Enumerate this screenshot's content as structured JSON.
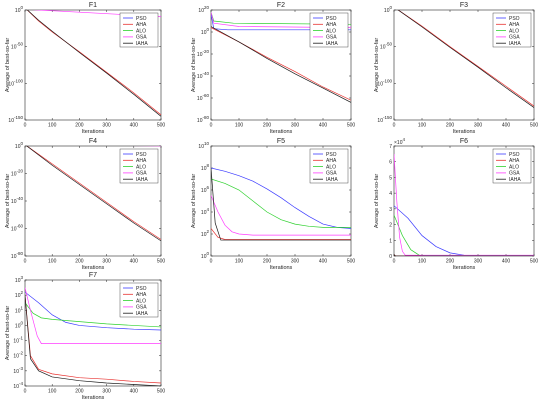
{
  "colors": {
    "PSO": "#3b3bff",
    "AHA": "#e8312f",
    "ALO": "#2fd12f",
    "GSA": "#ff3dff",
    "IAHA": "#1a1a1a"
  },
  "legend_names": [
    "PSO",
    "AHA",
    "ALO",
    "GSA",
    "IAHA"
  ],
  "chart_data": [
    {
      "id": "F1",
      "type": "line",
      "title": "F1",
      "xlabel": "Iterations",
      "ylabel": "Average of best-so-far",
      "xlim": [
        0,
        500
      ],
      "xticks": [
        0,
        100,
        200,
        300,
        400,
        500
      ],
      "yscale": "log",
      "ylim_exp": [
        -150,
        0
      ],
      "ytick_exps": [
        0,
        -50,
        -100,
        -150
      ],
      "legend_position": "top-right",
      "series": [
        {
          "name": "PSO",
          "x": [
            0,
            500
          ],
          "y_exp": [
            2,
            2
          ]
        },
        {
          "name": "AHA",
          "x": [
            0,
            50,
            100,
            200,
            300,
            400,
            500
          ],
          "y_exp": [
            3,
            -15,
            -30,
            -57,
            -85,
            -113,
            -143
          ]
        },
        {
          "name": "ALO",
          "x": [
            0,
            500
          ],
          "y_exp": [
            4,
            4
          ]
        },
        {
          "name": "GSA",
          "x": [
            0,
            500
          ],
          "y_exp": [
            1,
            -9
          ]
        },
        {
          "name": "IAHA",
          "x": [
            0,
            50,
            100,
            200,
            300,
            400,
            500
          ],
          "y_exp": [
            3,
            -14,
            -29,
            -58,
            -86,
            -115,
            -145
          ]
        }
      ]
    },
    {
      "id": "F2",
      "type": "line",
      "title": "F2",
      "xlabel": "Iterations",
      "ylabel": "Average of best-so-far",
      "xlim": [
        0,
        500
      ],
      "xticks": [
        0,
        100,
        200,
        300,
        400,
        500
      ],
      "yscale": "log",
      "ylim_exp": [
        -80,
        20
      ],
      "ytick_exps": [
        20,
        0,
        -20,
        -40,
        -60,
        -80
      ],
      "legend_position": "top-right",
      "series": [
        {
          "name": "PSO",
          "x": [
            0,
            10,
            60,
            500
          ],
          "y_exp": [
            16,
            3,
            2,
            2
          ]
        },
        {
          "name": "AHA",
          "x": [
            0,
            100,
            200,
            300,
            400,
            500
          ],
          "y_exp": [
            4,
            -9,
            -23,
            -36,
            -50,
            -62
          ]
        },
        {
          "name": "ALO",
          "x": [
            0,
            10,
            80,
            500
          ],
          "y_exp": [
            18,
            10,
            8,
            7
          ]
        },
        {
          "name": "GSA",
          "x": [
            0,
            10,
            100,
            500
          ],
          "y_exp": [
            18,
            8,
            5,
            4
          ]
        },
        {
          "name": "IAHA",
          "x": [
            0,
            100,
            200,
            300,
            400,
            500
          ],
          "y_exp": [
            5,
            -9,
            -24,
            -38,
            -51,
            -64
          ]
        }
      ]
    },
    {
      "id": "F3",
      "type": "line",
      "title": "F3",
      "xlabel": "Iterations",
      "ylabel": "Average of best-so-far",
      "xlim": [
        0,
        500
      ],
      "xticks": [
        0,
        100,
        200,
        300,
        400,
        500
      ],
      "yscale": "log",
      "ylim_exp": [
        -150,
        0
      ],
      "ytick_exps": [
        0,
        -50,
        -100,
        -150
      ],
      "legend_position": "top-right",
      "series": [
        {
          "name": "PSO",
          "x": [
            0,
            500
          ],
          "y_exp": [
            4,
            3
          ]
        },
        {
          "name": "AHA",
          "x": [
            0,
            100,
            200,
            300,
            400,
            500
          ],
          "y_exp": [
            4,
            -22,
            -50,
            -77,
            -104,
            -131
          ]
        },
        {
          "name": "ALO",
          "x": [
            0,
            500
          ],
          "y_exp": [
            5,
            4
          ]
        },
        {
          "name": "GSA",
          "x": [
            0,
            500
          ],
          "y_exp": [
            4,
            4
          ]
        },
        {
          "name": "IAHA",
          "x": [
            0,
            100,
            200,
            300,
            400,
            500
          ],
          "y_exp": [
            4,
            -23,
            -51,
            -78,
            -106,
            -133
          ]
        }
      ]
    },
    {
      "id": "F4",
      "type": "line",
      "title": "F4",
      "xlabel": "Iterations",
      "ylabel": "Average of best-so-far",
      "xlim": [
        0,
        500
      ],
      "xticks": [
        0,
        100,
        200,
        300,
        400,
        500
      ],
      "yscale": "log",
      "ylim_exp": [
        -80,
        0
      ],
      "ytick_exps": [
        0,
        -20,
        -40,
        -60,
        -80
      ],
      "legend_position": "top-right",
      "series": [
        {
          "name": "PSO",
          "x": [
            0,
            500
          ],
          "y_exp": [
            1,
            1
          ]
        },
        {
          "name": "AHA",
          "x": [
            0,
            100,
            200,
            300,
            400,
            500
          ],
          "y_exp": [
            1,
            -13,
            -27,
            -41,
            -55,
            -68
          ]
        },
        {
          "name": "ALO",
          "x": [
            0,
            500
          ],
          "y_exp": [
            1,
            0
          ]
        },
        {
          "name": "GSA",
          "x": [
            0,
            500
          ],
          "y_exp": [
            1,
            0
          ]
        },
        {
          "name": "IAHA",
          "x": [
            0,
            100,
            200,
            300,
            400,
            500
          ],
          "y_exp": [
            1,
            -14,
            -28,
            -42,
            -56,
            -69
          ]
        }
      ]
    },
    {
      "id": "F5",
      "type": "line",
      "title": "F5",
      "xlabel": "Iterations",
      "ylabel": "Average of best-so-far",
      "xlim": [
        0,
        500
      ],
      "xticks": [
        0,
        100,
        200,
        300,
        400,
        500
      ],
      "yscale": "log",
      "ylim_exp": [
        0,
        10
      ],
      "ytick_exps": [
        10,
        8,
        6,
        4,
        2,
        0
      ],
      "legend_position": "top-right",
      "series": [
        {
          "name": "PSO",
          "x": [
            0,
            50,
            100,
            150,
            200,
            250,
            300,
            350,
            400,
            450,
            500
          ],
          "y_exp": [
            8.0,
            7.7,
            7.3,
            6.8,
            6.1,
            5.3,
            4.4,
            3.6,
            2.9,
            2.6,
            2.5
          ]
        },
        {
          "name": "AHA",
          "x": [
            0,
            25,
            50,
            500
          ],
          "y_exp": [
            2.5,
            1.7,
            1.5,
            1.5
          ]
        },
        {
          "name": "ALO",
          "x": [
            0,
            50,
            100,
            150,
            200,
            250,
            300,
            350,
            400,
            500
          ],
          "y_exp": [
            7.0,
            6.6,
            6.0,
            5.0,
            4.0,
            3.3,
            2.9,
            2.7,
            2.6,
            2.6
          ]
        },
        {
          "name": "GSA",
          "x": [
            0,
            25,
            50,
            75,
            100,
            150,
            200,
            500
          ],
          "y_exp": [
            5.5,
            4.0,
            2.8,
            2.2,
            2.0,
            1.9,
            1.9,
            1.9
          ]
        },
        {
          "name": "IAHA",
          "x": [
            0,
            15,
            35,
            500
          ],
          "y_exp": [
            8.0,
            3.0,
            1.45,
            1.45
          ]
        }
      ]
    },
    {
      "id": "F6",
      "type": "line",
      "title": "F6",
      "xlabel": "Iterations",
      "ylabel": "Average of best-so-far",
      "xlim": [
        0,
        500
      ],
      "xticks": [
        0,
        100,
        200,
        300,
        400,
        500
      ],
      "yscale": "linear",
      "ylim": [
        0,
        7
      ],
      "yticks": [
        0,
        1,
        2,
        3,
        4,
        5,
        6,
        7
      ],
      "y_multiplier": "x10^4",
      "legend_position": "top-right",
      "series": [
        {
          "name": "PSO",
          "x": [
            0,
            50,
            100,
            150,
            200,
            250,
            300,
            500
          ],
          "y": [
            3.2,
            2.4,
            1.3,
            0.6,
            0.2,
            0.05,
            0.02,
            0.02
          ]
        },
        {
          "name": "AHA",
          "x": [
            0,
            5,
            500
          ],
          "y": [
            0.1,
            0.0,
            0.0
          ]
        },
        {
          "name": "ALO",
          "x": [
            0,
            30,
            60,
            90,
            120,
            500
          ],
          "y": [
            2.6,
            1.3,
            0.4,
            0.05,
            0.01,
            0.01
          ]
        },
        {
          "name": "GSA",
          "x": [
            0,
            10,
            20,
            30,
            40,
            500
          ],
          "y": [
            6.5,
            3.5,
            1.2,
            0.3,
            0.05,
            0.05
          ]
        },
        {
          "name": "IAHA",
          "x": [
            0,
            5,
            500
          ],
          "y": [
            0.1,
            0.0,
            0.0
          ]
        }
      ]
    },
    {
      "id": "F7",
      "type": "line",
      "title": "F7",
      "xlabel": "Iterations",
      "ylabel": "Average of best-so-far",
      "xlim": [
        0,
        500
      ],
      "xticks": [
        0,
        100,
        200,
        300,
        400,
        500
      ],
      "yscale": "log",
      "ylim_exp": [
        -4,
        3
      ],
      "ytick_exps": [
        3,
        2,
        1,
        0,
        -1,
        -2,
        -3,
        -4
      ],
      "legend_position": "top-right",
      "series": [
        {
          "name": "PSO",
          "x": [
            0,
            50,
            100,
            150,
            200,
            300,
            400,
            500
          ],
          "y_exp": [
            2.2,
            1.5,
            0.7,
            0.2,
            0.0,
            -0.15,
            -0.25,
            -0.3
          ]
        },
        {
          "name": "AHA",
          "x": [
            0,
            20,
            50,
            100,
            200,
            300,
            400,
            500
          ],
          "y_exp": [
            2.0,
            -2.0,
            -2.9,
            -3.2,
            -3.45,
            -3.55,
            -3.7,
            -3.8
          ]
        },
        {
          "name": "ALO",
          "x": [
            0,
            30,
            60,
            100,
            200,
            300,
            400,
            500
          ],
          "y_exp": [
            1.5,
            0.8,
            0.5,
            0.4,
            0.25,
            0.1,
            0.0,
            -0.1
          ]
        },
        {
          "name": "GSA",
          "x": [
            0,
            20,
            45,
            60,
            500
          ],
          "y_exp": [
            2.5,
            1.0,
            -0.7,
            -1.2,
            -1.2
          ]
        },
        {
          "name": "IAHA",
          "x": [
            0,
            20,
            50,
            100,
            200,
            300,
            400,
            500
          ],
          "y_exp": [
            2.0,
            -2.2,
            -3.0,
            -3.4,
            -3.65,
            -3.8,
            -3.9,
            -4.0
          ]
        }
      ]
    }
  ]
}
